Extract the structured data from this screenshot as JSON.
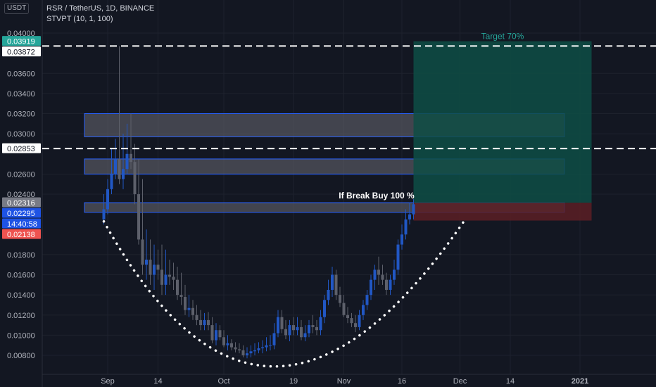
{
  "header": {
    "currency": "USDT",
    "symbol_line": "RSR / TetherUS, 1D, BINANCE",
    "indicator_line": "STVPT (10, 1, 100)"
  },
  "colors": {
    "background": "#131722",
    "up": "#2157c4",
    "down": "#5d606b",
    "zone_fill": "#6a6a72",
    "zone_border": "#2962ff",
    "target_fill": "#0e4d45",
    "stop_fill": "#5c1f25",
    "dashed_line": "#ffffff",
    "dots": "#ffffff",
    "price_teal": "#26a69a",
    "price_blue": "#1e53e5",
    "price_red": "#ef5350"
  },
  "annotations": {
    "target_label": "Target 70%",
    "break_label": "If Break Buy 100 %"
  },
  "chart_data": {
    "type": "candlestick",
    "title": "RSR / TetherUS, 1D, BINANCE",
    "x_start": "2020-08-26",
    "x_end": "2021-01-07",
    "ylim": [
      0.0066,
      0.0414
    ],
    "y_ticks": [
      {
        "value": 0.008,
        "label": "0.00800"
      },
      {
        "value": 0.01,
        "label": "0.01000"
      },
      {
        "value": 0.012,
        "label": "0.01200"
      },
      {
        "value": 0.014,
        "label": "0.01400"
      },
      {
        "value": 0.016,
        "label": "0.01600"
      },
      {
        "value": 0.018,
        "label": "0.01800"
      },
      {
        "value": 0.024,
        "label": "0.02400"
      },
      {
        "value": 0.026,
        "label": "0.02600"
      },
      {
        "value": 0.03,
        "label": "0.03000"
      },
      {
        "value": 0.032,
        "label": "0.03200"
      },
      {
        "value": 0.034,
        "label": "0.03400"
      },
      {
        "value": 0.036,
        "label": "0.03600"
      },
      {
        "value": 0.04,
        "label": "0.04000"
      }
    ],
    "x_ticks": [
      {
        "date": "2020-09-01",
        "label": "Sep"
      },
      {
        "date": "2020-09-14",
        "label": "14"
      },
      {
        "date": "2020-10-01",
        "label": "Oct"
      },
      {
        "date": "2020-10-19",
        "label": "19"
      },
      {
        "date": "2020-11-01",
        "label": "Nov"
      },
      {
        "date": "2020-11-16",
        "label": "16"
      },
      {
        "date": "2020-12-01",
        "label": "Dec"
      },
      {
        "date": "2020-12-14",
        "label": "14"
      },
      {
        "date": "2021-01-01",
        "label": "2021"
      }
    ],
    "price_badges": [
      {
        "label": "0.03919",
        "value": 0.03919,
        "color": "#26a69a"
      },
      {
        "label": "0.03872",
        "value": 0.03872,
        "color": "#ffffff"
      },
      {
        "label": "0.02853",
        "value": 0.02853,
        "color": "#ffffff"
      },
      {
        "label": "0.02316",
        "value": 0.02316,
        "color": "#787b86"
      },
      {
        "label": "0.02295",
        "value": 0.02295,
        "color": "#1e53e5"
      },
      {
        "label": "14:40:58",
        "value": 0.022,
        "color": "#1e53e5"
      },
      {
        "label": "0.02138",
        "value": 0.02138,
        "color": "#ef5350"
      }
    ],
    "dashed_lines": [
      0.03872,
      0.02853
    ],
    "zones": [
      {
        "top": 0.032,
        "bottom": 0.0297,
        "start": "2020-08-26",
        "end": "2020-12-28"
      },
      {
        "top": 0.0275,
        "bottom": 0.026,
        "start": "2020-08-26",
        "end": "2020-12-28"
      },
      {
        "top": 0.02316,
        "bottom": 0.0222,
        "start": "2020-08-26",
        "end": "2020-12-28"
      }
    ],
    "position": {
      "start": "2020-11-19",
      "end": "2021-01-04",
      "entry": 0.02316,
      "target": 0.03919,
      "stop": 0.02138
    },
    "cup_curve": {
      "start_date": "2020-08-31",
      "start_price": 0.0213,
      "bottom_date": "2020-10-14",
      "bottom_price": 0.0069,
      "end_date": "2020-12-02",
      "end_price": 0.0213
    },
    "series": [
      {
        "type": "ohlc",
        "x": [
          "2020-08-31",
          "2020-09-01",
          "2020-09-02",
          "2020-09-03",
          "2020-09-04",
          "2020-09-05",
          "2020-09-06",
          "2020-09-07",
          "2020-09-08",
          "2020-09-09",
          "2020-09-10",
          "2020-09-11",
          "2020-09-12",
          "2020-09-13",
          "2020-09-14",
          "2020-09-15",
          "2020-09-16",
          "2020-09-17",
          "2020-09-18",
          "2020-09-19",
          "2020-09-20",
          "2020-09-21",
          "2020-09-22",
          "2020-09-23",
          "2020-09-24",
          "2020-09-25",
          "2020-09-26",
          "2020-09-27",
          "2020-09-28",
          "2020-09-29",
          "2020-09-30",
          "2020-10-01",
          "2020-10-02",
          "2020-10-03",
          "2020-10-04",
          "2020-10-05",
          "2020-10-06",
          "2020-10-07",
          "2020-10-08",
          "2020-10-09",
          "2020-10-10",
          "2020-10-11",
          "2020-10-12",
          "2020-10-13",
          "2020-10-14",
          "2020-10-15",
          "2020-10-16",
          "2020-10-17",
          "2020-10-18",
          "2020-10-19",
          "2020-10-20",
          "2020-10-21",
          "2020-10-22",
          "2020-10-23",
          "2020-10-24",
          "2020-10-25",
          "2020-10-26",
          "2020-10-27",
          "2020-10-28",
          "2020-10-29",
          "2020-10-30",
          "2020-10-31",
          "2020-11-01",
          "2020-11-02",
          "2020-11-03",
          "2020-11-04",
          "2020-11-05",
          "2020-11-06",
          "2020-11-07",
          "2020-11-08",
          "2020-11-09",
          "2020-11-10",
          "2020-11-11",
          "2020-11-12",
          "2020-11-13",
          "2020-11-14",
          "2020-11-15",
          "2020-11-16",
          "2020-11-17",
          "2020-11-18",
          "2020-11-19"
        ],
        "open": [
          0.0215,
          0.0225,
          0.0245,
          0.026,
          0.0275,
          0.0255,
          0.0265,
          0.028,
          0.0272,
          0.024,
          0.0195,
          0.017,
          0.0175,
          0.016,
          0.017,
          0.0165,
          0.015,
          0.016,
          0.0158,
          0.0155,
          0.014,
          0.0138,
          0.0125,
          0.0127,
          0.012,
          0.0115,
          0.011,
          0.0115,
          0.011,
          0.0095,
          0.0105,
          0.0098,
          0.009,
          0.0092,
          0.0088,
          0.0086,
          0.0085,
          0.008,
          0.0082,
          0.0084,
          0.0085,
          0.0087,
          0.0088,
          0.009,
          0.009,
          0.0102,
          0.0118,
          0.0106,
          0.01,
          0.011,
          0.0105,
          0.0108,
          0.0098,
          0.0102,
          0.011,
          0.0108,
          0.0105,
          0.0118,
          0.0135,
          0.0145,
          0.016,
          0.014,
          0.0132,
          0.012,
          0.0117,
          0.0112,
          0.0108,
          0.012,
          0.013,
          0.014,
          0.0155,
          0.0165,
          0.016,
          0.0155,
          0.0145,
          0.0155,
          0.0165,
          0.019,
          0.02,
          0.0215,
          0.022
        ],
        "high": [
          0.024,
          0.0255,
          0.0285,
          0.0295,
          0.0387,
          0.03,
          0.031,
          0.032,
          0.029,
          0.0275,
          0.0255,
          0.0205,
          0.0195,
          0.019,
          0.0185,
          0.019,
          0.0185,
          0.0175,
          0.0172,
          0.0168,
          0.0162,
          0.015,
          0.014,
          0.0135,
          0.013,
          0.0125,
          0.0122,
          0.0123,
          0.0118,
          0.0112,
          0.011,
          0.0105,
          0.01,
          0.0096,
          0.0093,
          0.0092,
          0.009,
          0.0088,
          0.009,
          0.0092,
          0.0093,
          0.0095,
          0.0098,
          0.01,
          0.0112,
          0.0125,
          0.0125,
          0.0115,
          0.0115,
          0.0118,
          0.0118,
          0.0115,
          0.011,
          0.0115,
          0.012,
          0.0115,
          0.0125,
          0.014,
          0.0155,
          0.0168,
          0.0165,
          0.0148,
          0.014,
          0.0128,
          0.0122,
          0.012,
          0.0125,
          0.0135,
          0.0145,
          0.016,
          0.017,
          0.0178,
          0.017,
          0.0162,
          0.016,
          0.0175,
          0.0195,
          0.021,
          0.0225,
          0.0232,
          0.0235
        ],
        "low": [
          0.021,
          0.022,
          0.024,
          0.0255,
          0.025,
          0.0245,
          0.026,
          0.0265,
          0.023,
          0.019,
          0.016,
          0.0155,
          0.015,
          0.0145,
          0.0155,
          0.014,
          0.014,
          0.015,
          0.0145,
          0.0135,
          0.013,
          0.012,
          0.0118,
          0.0115,
          0.011,
          0.0105,
          0.0105,
          0.0105,
          0.0092,
          0.009,
          0.0095,
          0.0088,
          0.0085,
          0.0085,
          0.0083,
          0.0082,
          0.0078,
          0.0077,
          0.0078,
          0.008,
          0.0082,
          0.0082,
          0.0084,
          0.0085,
          0.0086,
          0.0098,
          0.0102,
          0.0096,
          0.0094,
          0.01,
          0.01,
          0.0095,
          0.0094,
          0.0098,
          0.0102,
          0.01,
          0.01,
          0.0112,
          0.013,
          0.0138,
          0.0135,
          0.0128,
          0.0118,
          0.0112,
          0.0108,
          0.0103,
          0.0105,
          0.0115,
          0.0125,
          0.0135,
          0.0145,
          0.015,
          0.015,
          0.014,
          0.014,
          0.015,
          0.016,
          0.0185,
          0.0195,
          0.021,
          0.0215
        ],
        "close": [
          0.0225,
          0.0245,
          0.026,
          0.0275,
          0.0255,
          0.0265,
          0.028,
          0.0272,
          0.024,
          0.0195,
          0.017,
          0.0175,
          0.016,
          0.017,
          0.0165,
          0.015,
          0.016,
          0.0158,
          0.0155,
          0.014,
          0.0138,
          0.0125,
          0.0127,
          0.012,
          0.0115,
          0.011,
          0.0115,
          0.011,
          0.0095,
          0.0105,
          0.0098,
          0.009,
          0.0092,
          0.0088,
          0.0086,
          0.0085,
          0.008,
          0.0082,
          0.0084,
          0.0085,
          0.0087,
          0.0088,
          0.009,
          0.009,
          0.0102,
          0.0118,
          0.0106,
          0.01,
          0.011,
          0.0105,
          0.0108,
          0.0098,
          0.0102,
          0.011,
          0.0108,
          0.0105,
          0.0118,
          0.0135,
          0.0145,
          0.016,
          0.014,
          0.0132,
          0.012,
          0.0117,
          0.0112,
          0.0108,
          0.012,
          0.013,
          0.014,
          0.0155,
          0.0165,
          0.016,
          0.0155,
          0.0145,
          0.0155,
          0.0165,
          0.019,
          0.02,
          0.0215,
          0.022,
          0.023
        ]
      }
    ]
  }
}
